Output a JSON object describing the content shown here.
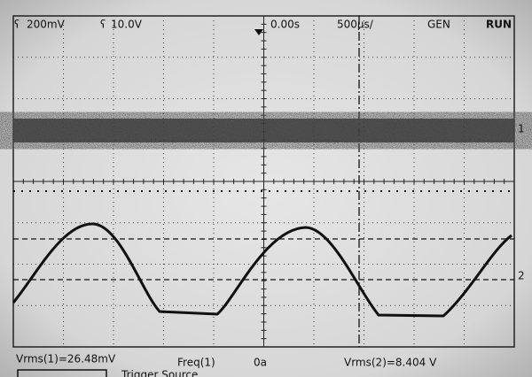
{
  "status_bar": {
    "ch1_scale": "200mV",
    "ch2_scale": "10.0V",
    "time_offset": "0.00s",
    "time_base": "500µs/",
    "mode": "GEN",
    "run_state": "RUN"
  },
  "channel_markers": [
    "1",
    "2"
  ],
  "measurements": {
    "left": "Vrms(1)=26.48mV",
    "middle": "Freq(1)",
    "middle_value": "0a",
    "right": "Vrms(2)=8.404 V"
  },
  "softkey": "Trigger Source"
}
